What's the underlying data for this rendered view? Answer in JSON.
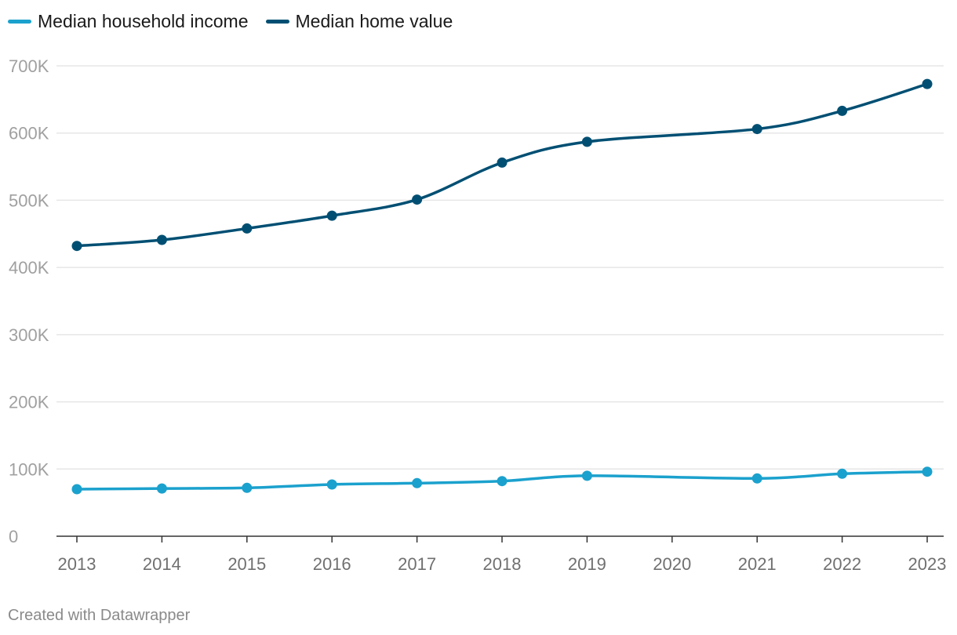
{
  "colors": {
    "income": "#1ba1cd",
    "home": "#004f73",
    "grid": "#e6e6e6",
    "axis": "#333333",
    "tick_label": "#a0a0a0",
    "x_label": "#707070"
  },
  "legend": {
    "income_label": "Median household income",
    "home_label": "Median home value"
  },
  "footer": {
    "credit": "Created with Datawrapper"
  },
  "chart_data": {
    "type": "line",
    "title": "",
    "xlabel": "",
    "ylabel": "",
    "x": [
      2013,
      2014,
      2015,
      2016,
      2017,
      2018,
      2019,
      2020,
      2021,
      2022,
      2023
    ],
    "xlim": [
      2013,
      2023
    ],
    "ylim": [
      0,
      700000
    ],
    "yticks": [
      0,
      100000,
      200000,
      300000,
      400000,
      500000,
      600000,
      700000
    ],
    "ytick_labels": [
      "0",
      "100K",
      "200K",
      "300K",
      "400K",
      "500K",
      "600K",
      "700K"
    ],
    "xtick_labels": [
      "2013",
      "2014",
      "2015",
      "2016",
      "2017",
      "2018",
      "2019",
      "2020",
      "2021",
      "2022",
      "2023"
    ],
    "grid": true,
    "legend_position": "top-left",
    "series": [
      {
        "name": "Median household income",
        "color_key": "income",
        "points": [
          [
            2013,
            70000
          ],
          [
            2014,
            71000
          ],
          [
            2015,
            72000
          ],
          [
            2016,
            77000
          ],
          [
            2017,
            79000
          ],
          [
            2018,
            82000
          ],
          [
            2019,
            90000
          ],
          [
            2021,
            86000
          ],
          [
            2022,
            93000
          ],
          [
            2023,
            96000
          ]
        ]
      },
      {
        "name": "Median home value",
        "color_key": "home",
        "points": [
          [
            2013,
            432000
          ],
          [
            2014,
            441000
          ],
          [
            2015,
            458000
          ],
          [
            2016,
            477000
          ],
          [
            2017,
            501000
          ],
          [
            2018,
            556000
          ],
          [
            2019,
            587000
          ],
          [
            2021,
            606000
          ],
          [
            2022,
            633000
          ],
          [
            2023,
            673000
          ]
        ]
      }
    ]
  }
}
